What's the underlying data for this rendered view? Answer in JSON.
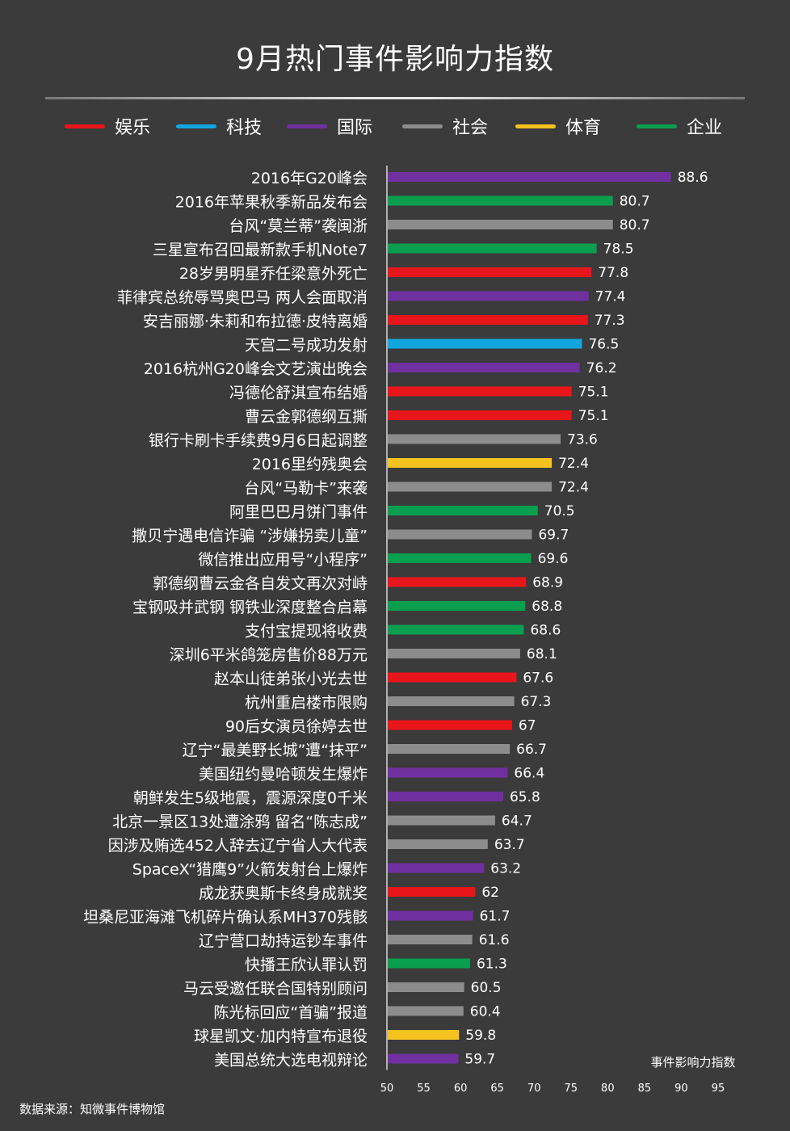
{
  "header": {
    "title": "9月热门事件影响力指数"
  },
  "legend": [
    {
      "label": "娱乐",
      "color": "#e8161a"
    },
    {
      "label": "科技",
      "color": "#12a6df"
    },
    {
      "label": "国际",
      "color": "#7030a0"
    },
    {
      "label": "社会",
      "color": "#8c8c8c"
    },
    {
      "label": "体育",
      "color": "#f6c21f"
    },
    {
      "label": "企业",
      "color": "#0a9e4f"
    }
  ],
  "footer": {
    "source": "数据来源：知微事件博物馆"
  },
  "chart_data": {
    "type": "bar",
    "orientation": "horizontal",
    "title": "9月热门事件影响力指数",
    "xlabel": "事件影响力指数",
    "xlim": [
      50,
      95
    ],
    "xticks": [
      50,
      55,
      60,
      65,
      70,
      75,
      80,
      85,
      90,
      95
    ],
    "categories": [
      "2016年G20峰会",
      "2016年苹果秋季新品发布会",
      "台风“莫兰蒂”袭闽浙",
      "三星宣布召回最新款手机Note7",
      "28岁男明星乔任梁意外死亡",
      "菲律宾总统辱骂奥巴马 两人会面取消",
      "安吉丽娜·朱莉和布拉德·皮特离婚",
      "天宫二号成功发射",
      "2016杭州G20峰会文艺演出晚会",
      "冯德伦舒淇宣布结婚",
      "曹云金郭德纲互撕",
      "银行卡刷卡手续费9月6日起调整",
      "2016里约残奥会",
      "台风“马勒卡”来袭",
      "阿里巴巴月饼门事件",
      "撒贝宁遇电信诈骗 “涉嫌拐卖儿童”",
      "微信推出应用号“小程序”",
      "郭德纲曹云金各自发文再次对峙",
      "宝钢吸并武钢 钢铁业深度整合启幕",
      "支付宝提现将收费",
      "深圳6平米鸽笼房售价88万元",
      "赵本山徒弟张小光去世",
      "杭州重启楼市限购",
      "90后女演员徐婷去世",
      "辽宁“最美野长城”遭“抹平”",
      "美国纽约曼哈顿发生爆炸",
      "朝鲜发生5级地震，震源深度0千米",
      "北京一景区13处遭涂鸦 留名“陈志成”",
      "因涉及贿选452人辞去辽宁省人大代表",
      "SpaceX“猎鹰9”火箭发射台上爆炸",
      "成龙获奥斯卡终身成就奖",
      "坦桑尼亚海滩飞机碎片确认系MH370残骸",
      "辽宁营口劫持运钞车事件",
      "快播王欣认罪认罚",
      "马云受邀任联合国特别顾问",
      "陈光标回应“首骗”报道",
      "球星凯文·加内特宣布退役",
      "美国总统大选电视辩论"
    ],
    "values": [
      88.6,
      80.7,
      80.7,
      78.5,
      77.8,
      77.4,
      77.3,
      76.5,
      76.2,
      75.1,
      75.1,
      73.6,
      72.4,
      72.4,
      70.5,
      69.7,
      69.6,
      68.9,
      68.8,
      68.6,
      68.1,
      67.6,
      67.3,
      67,
      66.7,
      66.4,
      65.8,
      64.7,
      63.7,
      63.2,
      62,
      61.7,
      61.6,
      61.3,
      60.5,
      60.4,
      59.8,
      59.7
    ],
    "value_labels": [
      "88.6",
      "80.7",
      "80.7",
      "78.5",
      "77.8",
      "77.4",
      "77.3",
      "76.5",
      "76.2",
      "75.1",
      "75.1",
      "73.6",
      "72.4",
      "72.4",
      "70.5",
      "69.7",
      "69.6",
      "68.9",
      "68.8",
      "68.6",
      "68.1",
      "67.6",
      "67.3",
      "67",
      "66.7",
      "66.4",
      "65.8",
      "64.7",
      "63.7",
      "63.2",
      "62",
      "61.7",
      "61.6",
      "61.3",
      "60.5",
      "60.4",
      "59.8",
      "59.7"
    ],
    "groups": [
      "国际",
      "企业",
      "社会",
      "企业",
      "娱乐",
      "国际",
      "娱乐",
      "科技",
      "国际",
      "娱乐",
      "娱乐",
      "社会",
      "体育",
      "社会",
      "企业",
      "社会",
      "企业",
      "娱乐",
      "企业",
      "企业",
      "社会",
      "娱乐",
      "社会",
      "娱乐",
      "社会",
      "国际",
      "国际",
      "社会",
      "社会",
      "国际",
      "娱乐",
      "国际",
      "社会",
      "企业",
      "社会",
      "社会",
      "体育",
      "国际"
    ],
    "grid": false,
    "legend_position": "top"
  }
}
